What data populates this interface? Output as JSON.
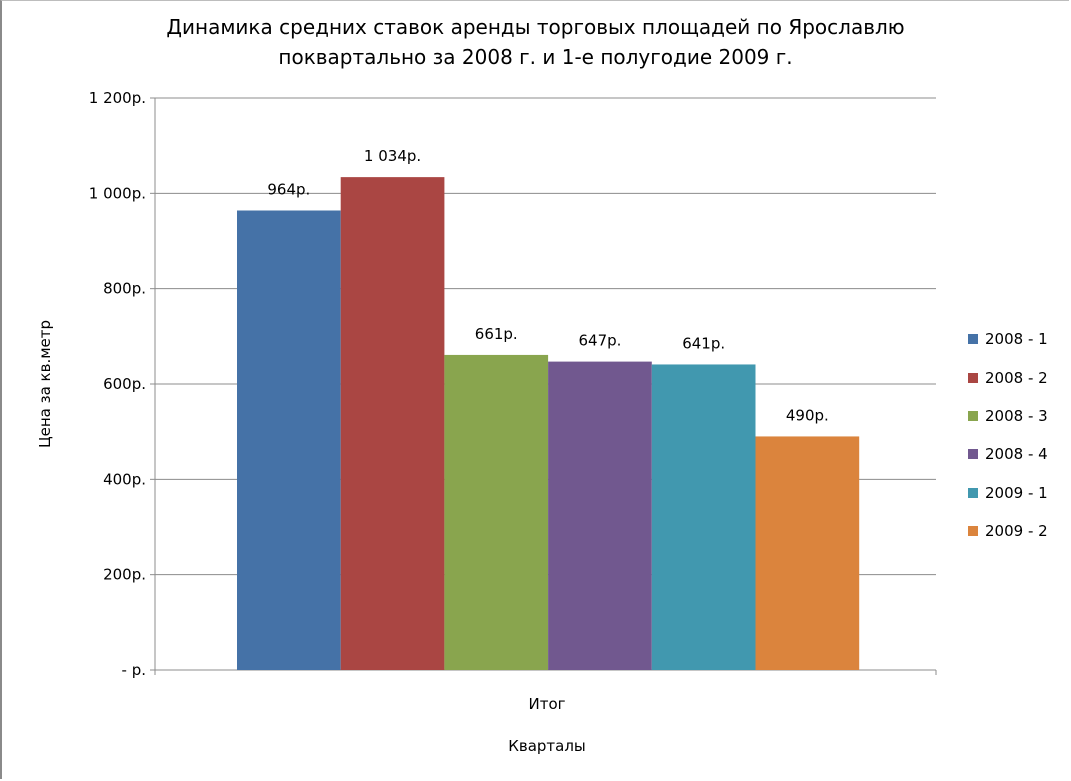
{
  "chart_data": {
    "type": "bar",
    "title": [
      "Динамика средних ставок аренды торговых площадей по Ярославлю",
      "поквартально за 2008 г. и 1-е полугодие 2009 г."
    ],
    "xlabel": "Кварталы",
    "ylabel": "Цена за кв.метр",
    "categories": [
      "Итог"
    ],
    "ylim": [
      0,
      1200
    ],
    "yticks": [
      {
        "value": 0,
        "label": "-   р."
      },
      {
        "value": 200,
        "label": "200р."
      },
      {
        "value": 400,
        "label": "400р."
      },
      {
        "value": 600,
        "label": "600р."
      },
      {
        "value": 800,
        "label": "800р."
      },
      {
        "value": 1000,
        "label": "1 000р."
      },
      {
        "value": 1200,
        "label": "1 200р."
      }
    ],
    "grid": true,
    "legend_position": "right",
    "series": [
      {
        "name": "2008 - 1",
        "values": [
          964
        ],
        "data_label": "964р.",
        "color": "#4572a7"
      },
      {
        "name": "2008 - 2",
        "values": [
          1034
        ],
        "data_label": "1 034р.",
        "color": "#aa4643"
      },
      {
        "name": "2008 - 3",
        "values": [
          661
        ],
        "data_label": "661р.",
        "color": "#89a54e"
      },
      {
        "name": "2008 - 4",
        "values": [
          647
        ],
        "data_label": "647р.",
        "color": "#71588f"
      },
      {
        "name": "2009 - 1",
        "values": [
          641
        ],
        "data_label": "641р.",
        "color": "#4198af"
      },
      {
        "name": "2009 - 2",
        "values": [
          490
        ],
        "data_label": "490р.",
        "color": "#db843d"
      }
    ]
  }
}
